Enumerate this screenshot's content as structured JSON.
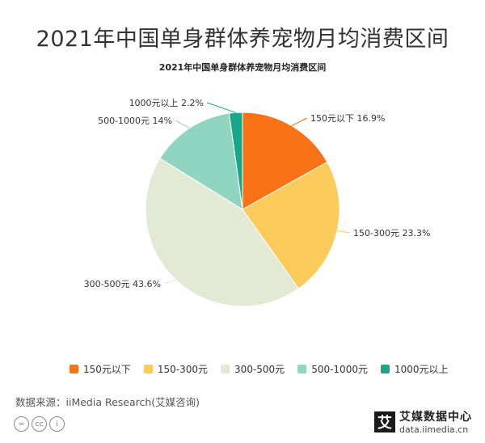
{
  "header": {
    "title": "2021年中国单身群体养宠物月均消费区间"
  },
  "chart_data": {
    "type": "pie",
    "title": "2021年中国单身群体养宠物月均消费区间",
    "categories": [
      "150元以下",
      "150-300元",
      "300-500元",
      "500-1000元",
      "1000元以上"
    ],
    "values": [
      16.9,
      23.3,
      43.6,
      14,
      2.2
    ],
    "data_labels": [
      "150元以下 16.9%",
      "150-300元 23.3%",
      "300-500元 43.6%",
      "500-1000元 14%",
      "1000元以上 2.2%"
    ],
    "colors": [
      "#f97316",
      "#fbcb5c",
      "#e2ead6",
      "#8fd5bf",
      "#17a78a"
    ],
    "legend_position": "bottom"
  },
  "footer": {
    "source": "数据来源：iiMedia Research(艾媒咨询)",
    "brand_logo": "艾",
    "brand_name": "艾媒数据中心",
    "brand_url": "data.iimedia.cn",
    "cc_icons": [
      "=",
      "cc",
      "i"
    ]
  }
}
